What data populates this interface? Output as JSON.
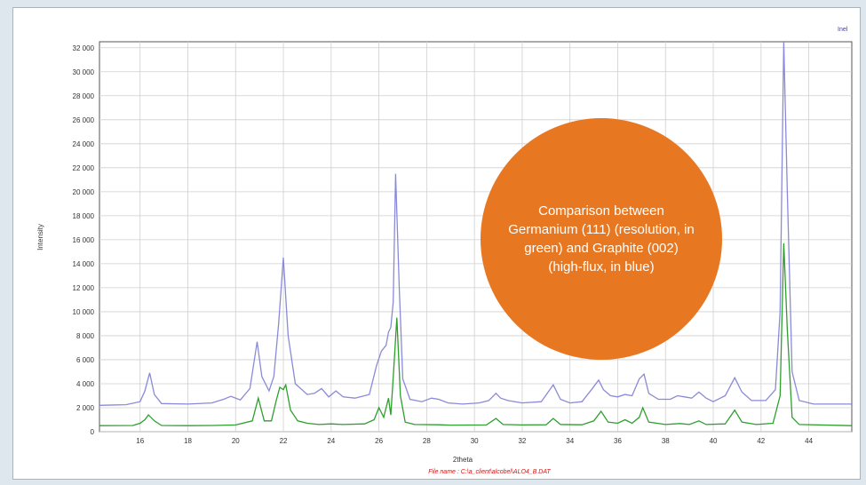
{
  "colors": {
    "background": "#dfe7ee",
    "series_graphite": "#8a8ad8",
    "series_germanium": "#2f9e2f",
    "callout": "#e87722",
    "footer_text": "#dd1111"
  },
  "callout": {
    "text": "Comparison between Germanium (111) (resolution, in green) and Graphite (002) (high-flux, in blue)"
  },
  "footer": {
    "filename": "File name : C:\\a_client\\alcobel\\ALO4_B.DAT"
  },
  "chart_data": {
    "type": "line",
    "title": "",
    "xlabel": "2theta",
    "ylabel": "Intensity",
    "legend_tag": "Inel",
    "xlim": [
      14.3,
      45.8
    ],
    "ylim": [
      0,
      32500
    ],
    "grid": true,
    "x_ticks": [
      16,
      18,
      20,
      22,
      24,
      26,
      28,
      30,
      32,
      34,
      36,
      38,
      40,
      42,
      44
    ],
    "y_ticks": [
      0,
      2000,
      4000,
      6000,
      8000,
      10000,
      12000,
      14000,
      16000,
      18000,
      20000,
      22000,
      24000,
      26000,
      28000,
      30000,
      32000
    ],
    "y_tick_labels": [
      "0",
      "2 000",
      "4 000",
      "6 000",
      "8 000",
      "10 000",
      "12 000",
      "14 000",
      "16 000",
      "18 000",
      "20 000",
      "22 000",
      "24 000",
      "26 000",
      "28 000",
      "30 000",
      "32 000"
    ],
    "series": [
      {
        "color": "#8a8ad8",
        "points": [
          [
            14.3,
            2200
          ],
          [
            15.4,
            2250
          ],
          [
            16.0,
            2500
          ],
          [
            16.2,
            3400
          ],
          [
            16.4,
            4900
          ],
          [
            16.6,
            3100
          ],
          [
            16.9,
            2350
          ],
          [
            18.0,
            2300
          ],
          [
            19.0,
            2400
          ],
          [
            19.5,
            2700
          ],
          [
            19.8,
            2950
          ],
          [
            20.2,
            2650
          ],
          [
            20.6,
            3600
          ],
          [
            20.9,
            7500
          ],
          [
            21.1,
            4600
          ],
          [
            21.4,
            3400
          ],
          [
            21.6,
            4600
          ],
          [
            21.8,
            9000
          ],
          [
            22.0,
            14500
          ],
          [
            22.2,
            8000
          ],
          [
            22.5,
            4000
          ],
          [
            23.0,
            3100
          ],
          [
            23.3,
            3200
          ],
          [
            23.6,
            3600
          ],
          [
            23.9,
            2900
          ],
          [
            24.2,
            3400
          ],
          [
            24.5,
            2900
          ],
          [
            25.0,
            2800
          ],
          [
            25.6,
            3100
          ],
          [
            25.9,
            5500
          ],
          [
            26.1,
            6700
          ],
          [
            26.3,
            7200
          ],
          [
            26.4,
            8300
          ],
          [
            26.5,
            8700
          ],
          [
            26.6,
            10800
          ],
          [
            26.7,
            21500
          ],
          [
            26.85,
            12000
          ],
          [
            27.0,
            4400
          ],
          [
            27.3,
            2700
          ],
          [
            27.8,
            2500
          ],
          [
            28.2,
            2800
          ],
          [
            28.5,
            2700
          ],
          [
            28.9,
            2400
          ],
          [
            29.5,
            2300
          ],
          [
            30.2,
            2400
          ],
          [
            30.6,
            2600
          ],
          [
            30.9,
            3200
          ],
          [
            31.1,
            2800
          ],
          [
            31.4,
            2600
          ],
          [
            32.0,
            2400
          ],
          [
            32.8,
            2500
          ],
          [
            33.3,
            3900
          ],
          [
            33.6,
            2700
          ],
          [
            34.0,
            2400
          ],
          [
            34.5,
            2500
          ],
          [
            34.9,
            3500
          ],
          [
            35.2,
            4300
          ],
          [
            35.4,
            3500
          ],
          [
            35.7,
            3000
          ],
          [
            36.0,
            2900
          ],
          [
            36.3,
            3100
          ],
          [
            36.6,
            3000
          ],
          [
            36.9,
            4400
          ],
          [
            37.1,
            4800
          ],
          [
            37.3,
            3200
          ],
          [
            37.7,
            2700
          ],
          [
            38.2,
            2700
          ],
          [
            38.5,
            3000
          ],
          [
            38.8,
            2900
          ],
          [
            39.1,
            2800
          ],
          [
            39.4,
            3300
          ],
          [
            39.7,
            2800
          ],
          [
            40.0,
            2500
          ],
          [
            40.5,
            3000
          ],
          [
            40.9,
            4500
          ],
          [
            41.2,
            3300
          ],
          [
            41.6,
            2600
          ],
          [
            42.2,
            2600
          ],
          [
            42.6,
            3500
          ],
          [
            42.8,
            10000
          ],
          [
            42.95,
            32500
          ],
          [
            43.1,
            20000
          ],
          [
            43.3,
            5000
          ],
          [
            43.6,
            2600
          ],
          [
            44.2,
            2300
          ],
          [
            45.8,
            2300
          ]
        ]
      },
      {
        "color": "#2f9e2f",
        "points": [
          [
            14.3,
            500
          ],
          [
            15.7,
            520
          ],
          [
            16.0,
            700
          ],
          [
            16.2,
            1000
          ],
          [
            16.35,
            1400
          ],
          [
            16.6,
            900
          ],
          [
            16.9,
            520
          ],
          [
            18.0,
            500
          ],
          [
            19.0,
            520
          ],
          [
            20.0,
            560
          ],
          [
            20.7,
            900
          ],
          [
            20.95,
            2800
          ],
          [
            21.2,
            900
          ],
          [
            21.5,
            900
          ],
          [
            21.7,
            2600
          ],
          [
            21.85,
            3700
          ],
          [
            22.0,
            3500
          ],
          [
            22.1,
            3900
          ],
          [
            22.3,
            1800
          ],
          [
            22.6,
            900
          ],
          [
            23.0,
            700
          ],
          [
            23.5,
            600
          ],
          [
            24.0,
            650
          ],
          [
            24.5,
            600
          ],
          [
            25.4,
            650
          ],
          [
            25.8,
            1000
          ],
          [
            26.0,
            2000
          ],
          [
            26.2,
            1200
          ],
          [
            26.4,
            2800
          ],
          [
            26.5,
            1400
          ],
          [
            26.6,
            4500
          ],
          [
            26.75,
            9500
          ],
          [
            26.9,
            3000
          ],
          [
            27.1,
            800
          ],
          [
            27.5,
            600
          ],
          [
            28.5,
            580
          ],
          [
            29.0,
            550
          ],
          [
            30.5,
            560
          ],
          [
            30.9,
            1100
          ],
          [
            31.2,
            600
          ],
          [
            32.0,
            560
          ],
          [
            33.0,
            580
          ],
          [
            33.3,
            1100
          ],
          [
            33.6,
            600
          ],
          [
            34.5,
            580
          ],
          [
            35.0,
            900
          ],
          [
            35.3,
            1700
          ],
          [
            35.6,
            800
          ],
          [
            36.0,
            700
          ],
          [
            36.3,
            1000
          ],
          [
            36.6,
            700
          ],
          [
            36.9,
            1200
          ],
          [
            37.05,
            2000
          ],
          [
            37.3,
            800
          ],
          [
            38.0,
            600
          ],
          [
            38.6,
            680
          ],
          [
            39.0,
            600
          ],
          [
            39.4,
            900
          ],
          [
            39.7,
            600
          ],
          [
            40.5,
            650
          ],
          [
            40.9,
            1800
          ],
          [
            41.2,
            800
          ],
          [
            41.8,
            600
          ],
          [
            42.5,
            700
          ],
          [
            42.8,
            3000
          ],
          [
            42.95,
            15700
          ],
          [
            43.1,
            8500
          ],
          [
            43.3,
            1200
          ],
          [
            43.6,
            600
          ],
          [
            45.8,
            500
          ]
        ]
      }
    ]
  }
}
